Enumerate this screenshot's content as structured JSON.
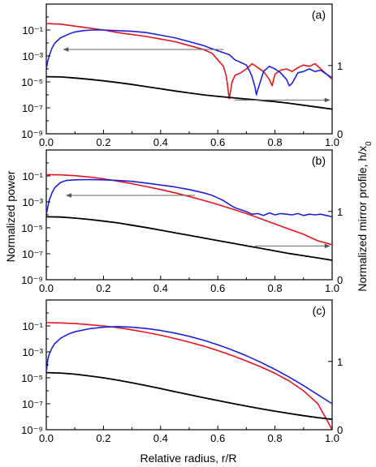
{
  "chart_data": {
    "type": "line",
    "shared": {
      "xlabel": "Relative radius, r/R",
      "ylabel_left": "Normalized power",
      "ylabel_right_main": "Normalized mirror profile, h/x",
      "ylabel_right_sub": "0",
      "xlim": [
        0,
        1
      ],
      "xticks": [
        0.0,
        0.2,
        0.4,
        0.6,
        0.8,
        1.0
      ],
      "xtick_labels": [
        "0.0",
        "0.2",
        "0.4",
        "0.6",
        "0.8",
        "1.0"
      ],
      "yscale_left": "log",
      "ylim_left_log10": [
        -9,
        1
      ],
      "yticks_left_log10": [
        -9,
        -7,
        -5,
        -3,
        -1
      ],
      "ytick_labels_left": [
        "10⁻⁹",
        "10⁻⁷",
        "10⁻⁵",
        "10⁻³",
        "10⁻¹"
      ],
      "grid": false,
      "legend": "none"
    },
    "panels": [
      {
        "label": "(a)",
        "ylim_right": [
          0,
          1.9
        ],
        "yticks_right": [
          0,
          1
        ],
        "ytick_labels_right": [
          "0",
          "1"
        ],
        "arrows": [
          {
            "from": [
              0.62,
              -2.5
            ],
            "to": [
              0.06,
              -2.5
            ],
            "points_to": "left"
          },
          {
            "from": [
              0.66,
              -6.4
            ],
            "to": [
              1.0,
              -6.4
            ],
            "points_to": "right"
          }
        ],
        "series": [
          {
            "color": "#e8141e",
            "axis": "left",
            "x": [
              0,
              0.05,
              0.1,
              0.15,
              0.2,
              0.25,
              0.3,
              0.35,
              0.4,
              0.45,
              0.5,
              0.55,
              0.58,
              0.6,
              0.62,
              0.63,
              0.64,
              0.65,
              0.66,
              0.68,
              0.7,
              0.72,
              0.74,
              0.76,
              0.78,
              0.79,
              0.8,
              0.82,
              0.84,
              0.86,
              0.88,
              0.9,
              0.92,
              0.94,
              0.96,
              0.98,
              1.0
            ],
            "y_log10": [
              -0.5,
              -0.55,
              -0.7,
              -0.85,
              -1.0,
              -1.2,
              -1.35,
              -1.5,
              -1.7,
              -1.9,
              -2.2,
              -2.5,
              -2.8,
              -3.3,
              -3.8,
              -4.6,
              -6.3,
              -5.0,
              -4.5,
              -4.3,
              -4.0,
              -3.6,
              -3.9,
              -4.2,
              -4.8,
              -5.3,
              -4.4,
              -4.1,
              -4.0,
              -4.2,
              -3.9,
              -3.7,
              -3.8,
              -3.6,
              -4.0,
              -4.4,
              -4.8
            ]
          },
          {
            "color": "#1e22d6",
            "axis": "left",
            "x": [
              0,
              0.005,
              0.01,
              0.02,
              0.03,
              0.05,
              0.08,
              0.1,
              0.13,
              0.16,
              0.2,
              0.25,
              0.3,
              0.35,
              0.4,
              0.45,
              0.5,
              0.55,
              0.6,
              0.64,
              0.66,
              0.68,
              0.7,
              0.71,
              0.72,
              0.73,
              0.735,
              0.74,
              0.75,
              0.76,
              0.78,
              0.8,
              0.82,
              0.84,
              0.85,
              0.86,
              0.88,
              0.9,
              0.92,
              0.94,
              0.96,
              0.98,
              1.0
            ],
            "y_log10": [
              -4.0,
              -3.4,
              -3.0,
              -2.4,
              -2.0,
              -1.6,
              -1.3,
              -1.15,
              -1.05,
              -1.0,
              -1.0,
              -1.05,
              -1.1,
              -1.2,
              -1.4,
              -1.6,
              -1.9,
              -2.2,
              -2.6,
              -2.9,
              -3.3,
              -3.5,
              -3.7,
              -4.1,
              -4.6,
              -5.4,
              -6.0,
              -5.6,
              -4.9,
              -4.2,
              -3.8,
              -4.0,
              -4.3,
              -4.8,
              -5.3,
              -5.1,
              -4.3,
              -4.2,
              -4.0,
              -4.2,
              -4.1,
              -4.4,
              -4.7
            ]
          },
          {
            "color": "#000000",
            "axis": "left",
            "x": [
              0,
              0.05,
              0.1,
              0.15,
              0.2,
              0.25,
              0.3,
              0.35,
              0.4,
              0.45,
              0.5,
              0.55,
              0.6,
              0.65,
              0.7,
              0.75,
              0.8,
              0.85,
              0.9,
              0.95,
              1.0
            ],
            "y_log10": [
              -4.6,
              -4.62,
              -4.7,
              -4.8,
              -4.92,
              -5.05,
              -5.2,
              -5.37,
              -5.53,
              -5.7,
              -5.85,
              -6.0,
              -6.12,
              -6.22,
              -6.32,
              -6.42,
              -6.52,
              -6.65,
              -6.8,
              -6.95,
              -7.1
            ]
          }
        ]
      },
      {
        "label": "(b)",
        "ylim_right": [
          0,
          1.9
        ],
        "yticks_right": [
          0,
          1
        ],
        "ytick_labels_right": [
          "0",
          "1"
        ],
        "arrows": [
          {
            "from": [
              0.52,
              -2.5
            ],
            "to": [
              0.07,
              -2.5
            ],
            "points_to": "left"
          },
          {
            "from": [
              0.73,
              -6.4
            ],
            "to": [
              1.0,
              -6.4
            ],
            "points_to": "right"
          }
        ],
        "series": [
          {
            "color": "#e8141e",
            "axis": "left",
            "x": [
              0,
              0.05,
              0.1,
              0.15,
              0.2,
              0.25,
              0.3,
              0.35,
              0.4,
              0.45,
              0.5,
              0.55,
              0.6,
              0.65,
              0.7,
              0.75,
              0.8,
              0.85,
              0.9,
              0.95,
              1.0
            ],
            "y_log10": [
              -0.9,
              -0.92,
              -0.98,
              -1.08,
              -1.22,
              -1.4,
              -1.6,
              -1.82,
              -2.05,
              -2.3,
              -2.58,
              -2.88,
              -3.2,
              -3.55,
              -3.9,
              -4.3,
              -4.7,
              -5.1,
              -5.5,
              -6.0,
              -6.3
            ]
          },
          {
            "color": "#1e22d6",
            "axis": "left",
            "x": [
              0,
              0.005,
              0.01,
              0.02,
              0.03,
              0.05,
              0.07,
              0.1,
              0.15,
              0.2,
              0.25,
              0.3,
              0.35,
              0.4,
              0.45,
              0.5,
              0.55,
              0.58,
              0.6,
              0.62,
              0.64,
              0.66,
              0.68,
              0.7,
              0.72,
              0.74,
              0.76,
              0.78,
              0.8,
              0.82,
              0.84,
              0.86,
              0.88,
              0.9,
              0.92,
              0.94,
              0.96,
              0.98,
              1.0
            ],
            "y_log10": [
              -4.0,
              -3.4,
              -2.9,
              -2.3,
              -1.9,
              -1.5,
              -1.35,
              -1.3,
              -1.28,
              -1.3,
              -1.35,
              -1.42,
              -1.55,
              -1.7,
              -1.85,
              -2.05,
              -2.3,
              -2.5,
              -2.7,
              -2.9,
              -3.2,
              -3.45,
              -3.6,
              -3.75,
              -3.95,
              -3.9,
              -4.05,
              -3.85,
              -4.0,
              -3.9,
              -3.95,
              -4.0,
              -3.9,
              -4.05,
              -3.95,
              -4.0,
              -3.95,
              -4.05,
              -4.15
            ]
          },
          {
            "color": "#000000",
            "axis": "left",
            "x": [
              0,
              0.05,
              0.1,
              0.15,
              0.2,
              0.25,
              0.3,
              0.35,
              0.4,
              0.45,
              0.5,
              0.55,
              0.6,
              0.65,
              0.7,
              0.75,
              0.8,
              0.85,
              0.9,
              0.95,
              1.0
            ],
            "y_log10": [
              -4.15,
              -4.17,
              -4.25,
              -4.35,
              -4.48,
              -4.62,
              -4.8,
              -4.98,
              -5.18,
              -5.38,
              -5.58,
              -5.78,
              -5.98,
              -6.18,
              -6.38,
              -6.58,
              -6.78,
              -6.98,
              -7.15,
              -7.32,
              -7.5
            ]
          }
        ]
      },
      {
        "label": "(c)",
        "ylim_right": [
          0,
          1.9
        ],
        "yticks_right": [
          0,
          1
        ],
        "ytick_labels_right": [
          "0",
          "1"
        ],
        "arrows": [],
        "series": [
          {
            "color": "#e8141e",
            "axis": "left",
            "x": [
              0,
              0.05,
              0.1,
              0.15,
              0.2,
              0.25,
              0.3,
              0.35,
              0.4,
              0.45,
              0.5,
              0.55,
              0.6,
              0.65,
              0.7,
              0.75,
              0.8,
              0.85,
              0.9,
              0.95,
              0.98,
              1.0
            ],
            "y_log10": [
              -0.75,
              -0.77,
              -0.82,
              -0.9,
              -1.0,
              -1.13,
              -1.3,
              -1.5,
              -1.72,
              -1.97,
              -2.25,
              -2.55,
              -2.9,
              -3.28,
              -3.7,
              -4.15,
              -4.65,
              -5.25,
              -6.0,
              -7.0,
              -8.2,
              -9.0
            ]
          },
          {
            "color": "#1e22d6",
            "axis": "left",
            "x": [
              0,
              0.005,
              0.01,
              0.02,
              0.03,
              0.05,
              0.08,
              0.1,
              0.15,
              0.2,
              0.25,
              0.3,
              0.35,
              0.4,
              0.45,
              0.5,
              0.55,
              0.6,
              0.65,
              0.7,
              0.75,
              0.8,
              0.85,
              0.9,
              0.95,
              1.0
            ],
            "y_log10": [
              -4.6,
              -3.6,
              -3.2,
              -2.7,
              -2.35,
              -1.95,
              -1.6,
              -1.45,
              -1.22,
              -1.1,
              -1.05,
              -1.1,
              -1.2,
              -1.35,
              -1.55,
              -1.8,
              -2.1,
              -2.45,
              -2.85,
              -3.3,
              -3.8,
              -4.35,
              -4.95,
              -5.6,
              -6.3,
              -7.0
            ]
          },
          {
            "color": "#000000",
            "axis": "left",
            "x": [
              0,
              0.05,
              0.1,
              0.15,
              0.2,
              0.25,
              0.3,
              0.35,
              0.4,
              0.45,
              0.5,
              0.55,
              0.6,
              0.65,
              0.7,
              0.75,
              0.8,
              0.85,
              0.9,
              0.95,
              1.0
            ],
            "y_log10": [
              -4.6,
              -4.63,
              -4.72,
              -4.85,
              -5.0,
              -5.18,
              -5.38,
              -5.6,
              -5.83,
              -6.07,
              -6.3,
              -6.53,
              -6.75,
              -6.97,
              -7.18,
              -7.38,
              -7.57,
              -7.75,
              -7.92,
              -8.07,
              -8.2
            ]
          }
        ]
      }
    ]
  }
}
